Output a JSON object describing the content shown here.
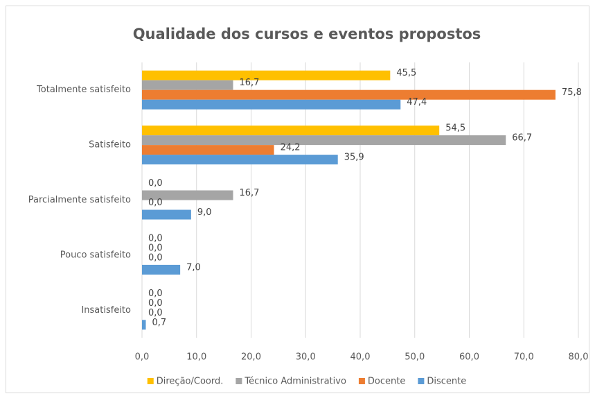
{
  "chart_data": {
    "type": "hbar",
    "title": "Qualidade dos cursos e eventos propostos",
    "categories": [
      "Totalmente satisfeito",
      "Satisfeito",
      "Parcialmente satisfeito",
      "Pouco satisfeito",
      "Insatisfeito"
    ],
    "series": [
      {
        "name": "Direção/Coord.",
        "color": "#FFC000",
        "values": [
          45.5,
          54.5,
          0,
          0,
          0
        ],
        "value_labels": [
          "45,5",
          "54,5",
          "0,0",
          "0,0",
          "0,0"
        ]
      },
      {
        "name": "Técnico Administrativo",
        "color": "#A5A5A5",
        "values": [
          16.7,
          66.7,
          16.7,
          0,
          0
        ],
        "value_labels": [
          "16,7",
          "66,7",
          "16,7",
          "0,0",
          "0,0"
        ]
      },
      {
        "name": "Docente",
        "color": "#ED7D31",
        "values": [
          75.8,
          24.2,
          0,
          0,
          0
        ],
        "value_labels": [
          "75,8",
          "24,2",
          "0,0",
          "0,0",
          "0,0"
        ]
      },
      {
        "name": "Discente",
        "color": "#5B9BD5",
        "values": [
          47.4,
          35.9,
          9.0,
          7.0,
          0.7
        ],
        "value_labels": [
          "47,4",
          "35,9",
          "9,0",
          "7,0",
          "0,7"
        ]
      }
    ],
    "xlim": [
      0,
      80
    ],
    "xticks": [
      {
        "value": 0,
        "label": "0,0"
      },
      {
        "value": 10,
        "label": "10,0"
      },
      {
        "value": 20,
        "label": "20,0"
      },
      {
        "value": 30,
        "label": "30,0"
      },
      {
        "value": 40,
        "label": "40,0"
      },
      {
        "value": 50,
        "label": "50,0"
      },
      {
        "value": 60,
        "label": "60,0"
      },
      {
        "value": 70,
        "label": "70,0"
      },
      {
        "value": 80,
        "label": "80,0"
      }
    ],
    "grid": true,
    "legend": "bottom"
  }
}
